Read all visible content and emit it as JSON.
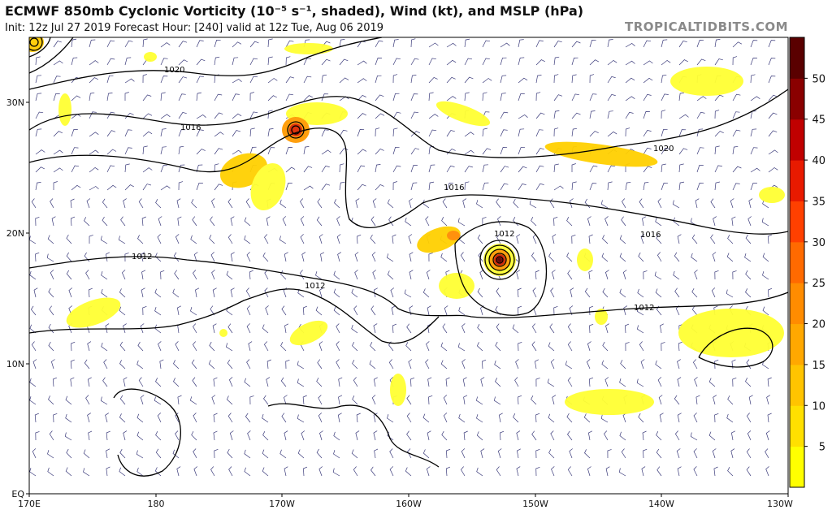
{
  "header": {
    "title": "ECMWF 850mb Cyclonic Vorticity (10⁻⁵ s⁻¹, shaded), Wind (kt), and MSLP (hPa)",
    "subtitle": "Init: 12z Jul 27 2019   Forecast Hour: [240]   valid at 12z Tue, Aug 06 2019",
    "brand": "TROPICALTIDBITS.COM"
  },
  "map": {
    "lat_labels": [
      "30N",
      "20N",
      "10N",
      "EQ"
    ],
    "lon_labels": [
      "170E",
      "180",
      "170W",
      "160W",
      "150W",
      "140W",
      "130W"
    ],
    "isobar_labels": [
      "1020",
      "1016",
      "1016",
      "1020",
      "1016",
      "1012",
      "1012",
      "1012",
      "1012"
    ],
    "lon_range": [
      "170E",
      "130W"
    ],
    "lat_range": [
      "EQ",
      "35N"
    ]
  },
  "colorbar": {
    "ticks": [
      "5",
      "10",
      "15",
      "20",
      "25",
      "30",
      "35",
      "40",
      "45",
      "50"
    ],
    "colors": [
      "#ffff00",
      "#ffe000",
      "#ffc400",
      "#ffa800",
      "#ff8c00",
      "#ff6a00",
      "#ff4000",
      "#e81a00",
      "#c00000",
      "#8a0000",
      "#5a0000"
    ]
  },
  "colors": {
    "barb": "#3a3a7a",
    "isobar": "#000000",
    "vort_low": "#ffff33",
    "vort_mid": "#ff9900",
    "vort_high": "#cc2200"
  }
}
